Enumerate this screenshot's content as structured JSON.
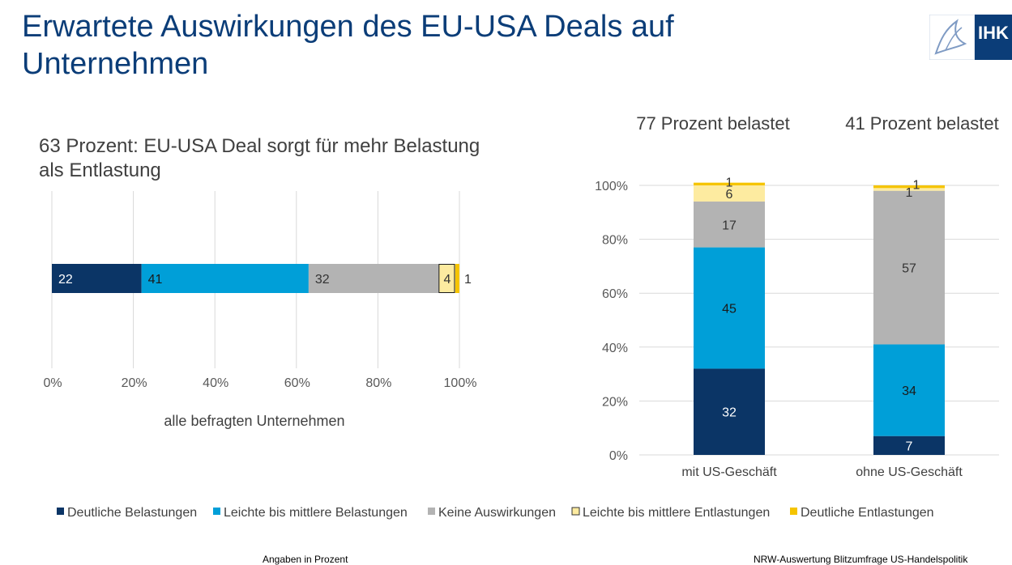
{
  "page": {
    "title": "Erwartete Auswirkungen des EU-USA Deals auf Unternehmen",
    "logo_text": "IHK",
    "footer_left": "Angaben in Prozent",
    "footer_right": "NRW-Auswertung Blitzumfrage US-Handelspolitik"
  },
  "colors": {
    "title": "#0b3d78",
    "deutliche_belastungen": "#0b3566",
    "leichte_belastungen": "#009fd8",
    "keine_auswirkungen": "#b3b3b3",
    "leichte_entlastungen": "#fdeba0",
    "deutliche_entlastungen": "#f5c400"
  },
  "legend": [
    "Deutliche Belastungen",
    "Leichte bis mittlere Belastungen",
    "Keine Auswirkungen",
    "Leichte bis mittlere Entlastungen",
    "Deutliche Entlastungen"
  ],
  "chart_data": [
    {
      "type": "bar",
      "orientation": "horizontal",
      "stacked": true,
      "title": "63 Prozent: EU-USA Deal sorgt für mehr Belastung als Entlastung",
      "xlabel": "alle befragten Unternehmen",
      "xlim": [
        0,
        100
      ],
      "x_ticks": [
        "0%",
        "20%",
        "40%",
        "60%",
        "80%",
        "100%"
      ],
      "grid": true,
      "legend_position": "bottom",
      "categories": [
        "alle befragten Unternehmen"
      ],
      "series": [
        {
          "name": "Deutliche Belastungen",
          "values": [
            22
          ]
        },
        {
          "name": "Leichte bis mittlere Belastungen",
          "values": [
            41
          ]
        },
        {
          "name": "Keine Auswirkungen",
          "values": [
            32
          ]
        },
        {
          "name": "Leichte bis mittlere Entlastungen",
          "values": [
            4
          ]
        },
        {
          "name": "Deutliche Entlastungen",
          "values": [
            1
          ]
        }
      ]
    },
    {
      "type": "bar",
      "orientation": "vertical",
      "stacked": true,
      "headers": [
        "77 Prozent belastet",
        "41 Prozent belastet"
      ],
      "categories": [
        "mit US-Geschäft",
        "ohne US-Geschäft"
      ],
      "ylim": [
        0,
        100
      ],
      "y_ticks": [
        "0%",
        "20%",
        "40%",
        "60%",
        "80%",
        "100%"
      ],
      "grid": true,
      "legend_position": "bottom",
      "series": [
        {
          "name": "Deutliche Belastungen",
          "values": [
            32,
            7
          ]
        },
        {
          "name": "Leichte bis mittlere Belastungen",
          "values": [
            45,
            34
          ]
        },
        {
          "name": "Keine Auswirkungen",
          "values": [
            17,
            57
          ]
        },
        {
          "name": "Leichte bis mittlere Entlastungen",
          "values": [
            6,
            1
          ]
        },
        {
          "name": "Deutliche Entlastungen",
          "values": [
            1,
            1
          ]
        }
      ]
    }
  ]
}
